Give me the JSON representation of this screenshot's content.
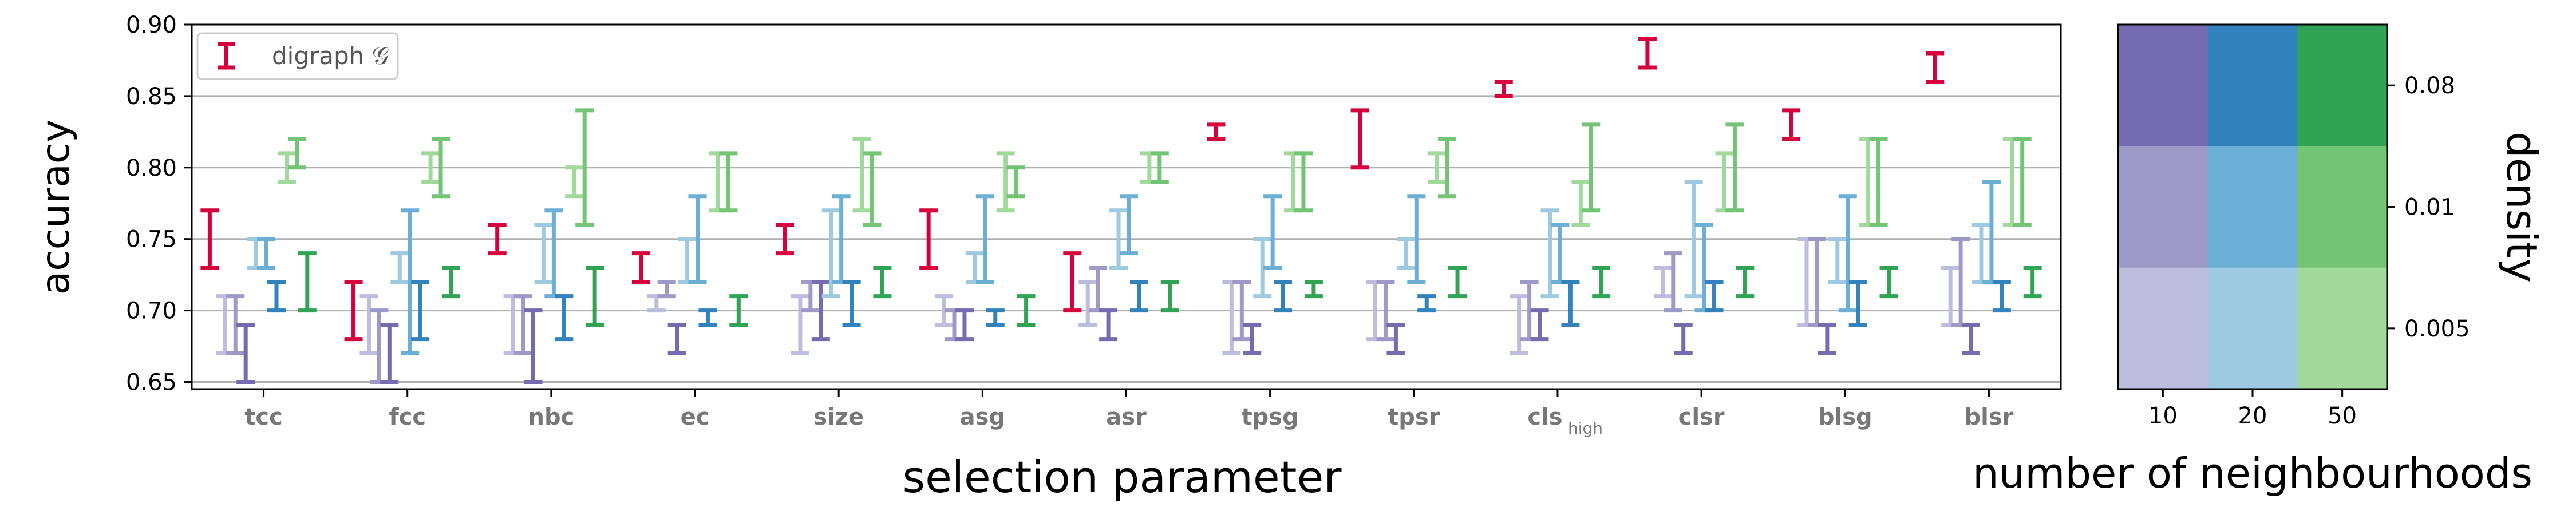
{
  "chart_data": [
    {
      "type": "errorbar",
      "xlabel": "selection parameter",
      "ylabel": "accuracy",
      "categories": [
        "tcc",
        "fcc",
        "nbc",
        "ec",
        "size",
        "asg",
        "asr",
        "tpsg",
        "tpsr",
        "cls",
        "clsr",
        "blsg",
        "blsr"
      ],
      "category_subscripts": {
        "cls": "high"
      },
      "ylim": [
        0.645,
        0.9
      ],
      "yticks": [
        "0.65",
        "0.70",
        "0.75",
        "0.80",
        "0.85",
        "0.90"
      ],
      "grid": "horizontal",
      "legend": {
        "location": "top-left",
        "entries": [
          {
            "label": "digraph 𝒢",
            "color": "#d6003c"
          }
        ]
      },
      "series": [
        {
          "name": "digraph 𝒢",
          "color": "#d6003c",
          "offset": -0.42,
          "intervals": [
            [
              0.73,
              0.77
            ],
            [
              0.68,
              0.72
            ],
            [
              0.74,
              0.76
            ],
            [
              0.72,
              0.74
            ],
            [
              0.74,
              0.76
            ],
            [
              0.73,
              0.77
            ],
            [
              0.7,
              0.74
            ],
            [
              0.82,
              0.83
            ],
            [
              0.8,
              0.84
            ],
            [
              0.85,
              0.86
            ],
            [
              0.87,
              0.89
            ],
            [
              0.82,
              0.84
            ],
            [
              0.86,
              0.88
            ]
          ]
        },
        {
          "color": "#bcbddc",
          "offset": -0.3,
          "intervals": [
            [
              0.67,
              0.71
            ],
            [
              0.67,
              0.71
            ],
            [
              0.67,
              0.71
            ],
            [
              0.7,
              0.71
            ],
            [
              0.67,
              0.71
            ],
            [
              0.69,
              0.71
            ],
            [
              0.69,
              0.72
            ],
            [
              0.67,
              0.72
            ],
            [
              0.68,
              0.72
            ],
            [
              0.67,
              0.71
            ],
            [
              0.71,
              0.73
            ],
            [
              0.69,
              0.75
            ],
            [
              0.69,
              0.73
            ]
          ]
        },
        {
          "color": "#9e9ac8",
          "offset": -0.22,
          "intervals": [
            [
              0.67,
              0.71
            ],
            [
              0.65,
              0.7
            ],
            [
              0.67,
              0.71
            ],
            [
              0.71,
              0.72
            ],
            [
              0.7,
              0.72
            ],
            [
              0.68,
              0.7
            ],
            [
              0.7,
              0.73
            ],
            [
              0.68,
              0.72
            ],
            [
              0.68,
              0.72
            ],
            [
              0.68,
              0.72
            ],
            [
              0.7,
              0.74
            ],
            [
              0.69,
              0.75
            ],
            [
              0.69,
              0.75
            ]
          ]
        },
        {
          "color": "#756bb1",
          "offset": -0.14,
          "intervals": [
            [
              0.65,
              0.69
            ],
            [
              0.65,
              0.69
            ],
            [
              0.65,
              0.7
            ],
            [
              0.67,
              0.69
            ],
            [
              0.68,
              0.72
            ],
            [
              0.68,
              0.7
            ],
            [
              0.68,
              0.7
            ],
            [
              0.67,
              0.69
            ],
            [
              0.67,
              0.69
            ],
            [
              0.68,
              0.7
            ],
            [
              0.67,
              0.69
            ],
            [
              0.67,
              0.69
            ],
            [
              0.67,
              0.69
            ]
          ]
        },
        {
          "color": "#9ecae1",
          "offset": -0.06,
          "intervals": [
            [
              0.73,
              0.75
            ],
            [
              0.72,
              0.74
            ],
            [
              0.72,
              0.76
            ],
            [
              0.72,
              0.75
            ],
            [
              0.71,
              0.77
            ],
            [
              0.72,
              0.74
            ],
            [
              0.73,
              0.77
            ],
            [
              0.71,
              0.75
            ],
            [
              0.73,
              0.75
            ],
            [
              0.71,
              0.77
            ],
            [
              0.71,
              0.79
            ],
            [
              0.72,
              0.75
            ],
            [
              0.72,
              0.76
            ]
          ]
        },
        {
          "color": "#6baed6",
          "offset": 0.02,
          "intervals": [
            [
              0.73,
              0.75
            ],
            [
              0.67,
              0.77
            ],
            [
              0.71,
              0.77
            ],
            [
              0.72,
              0.78
            ],
            [
              0.72,
              0.78
            ],
            [
              0.72,
              0.78
            ],
            [
              0.74,
              0.78
            ],
            [
              0.73,
              0.78
            ],
            [
              0.72,
              0.78
            ],
            [
              0.72,
              0.76
            ],
            [
              0.7,
              0.76
            ],
            [
              0.7,
              0.78
            ],
            [
              0.72,
              0.79
            ]
          ]
        },
        {
          "color": "#3182bd",
          "offset": 0.1,
          "intervals": [
            [
              0.7,
              0.72
            ],
            [
              0.68,
              0.72
            ],
            [
              0.68,
              0.71
            ],
            [
              0.69,
              0.7
            ],
            [
              0.69,
              0.72
            ],
            [
              0.69,
              0.7
            ],
            [
              0.7,
              0.72
            ],
            [
              0.7,
              0.72
            ],
            [
              0.7,
              0.71
            ],
            [
              0.69,
              0.72
            ],
            [
              0.7,
              0.72
            ],
            [
              0.69,
              0.72
            ],
            [
              0.7,
              0.72
            ]
          ]
        },
        {
          "color": "#a1d99b",
          "offset": 0.18,
          "intervals": [
            [
              0.79,
              0.81
            ],
            [
              0.79,
              0.81
            ],
            [
              0.78,
              0.8
            ],
            [
              0.77,
              0.81
            ],
            [
              0.77,
              0.82
            ],
            [
              0.77,
              0.81
            ],
            [
              0.79,
              0.81
            ],
            [
              0.77,
              0.81
            ],
            [
              0.79,
              0.81
            ],
            [
              0.76,
              0.79
            ],
            [
              0.77,
              0.81
            ],
            [
              0.76,
              0.82
            ],
            [
              0.76,
              0.82
            ]
          ]
        },
        {
          "color": "#74c476",
          "offset": 0.26,
          "intervals": [
            [
              0.8,
              0.82
            ],
            [
              0.78,
              0.82
            ],
            [
              0.76,
              0.84
            ],
            [
              0.77,
              0.81
            ],
            [
              0.76,
              0.81
            ],
            [
              0.78,
              0.8
            ],
            [
              0.79,
              0.81
            ],
            [
              0.77,
              0.81
            ],
            [
              0.78,
              0.82
            ],
            [
              0.77,
              0.83
            ],
            [
              0.77,
              0.83
            ],
            [
              0.76,
              0.82
            ],
            [
              0.76,
              0.82
            ]
          ]
        },
        {
          "color": "#31a354",
          "offset": 0.34,
          "intervals": [
            [
              0.7,
              0.74
            ],
            [
              0.71,
              0.73
            ],
            [
              0.69,
              0.73
            ],
            [
              0.69,
              0.71
            ],
            [
              0.71,
              0.73
            ],
            [
              0.69,
              0.71
            ],
            [
              0.7,
              0.72
            ],
            [
              0.71,
              0.72
            ],
            [
              0.71,
              0.73
            ],
            [
              0.71,
              0.73
            ],
            [
              0.71,
              0.73
            ],
            [
              0.71,
              0.73
            ],
            [
              0.71,
              0.73
            ]
          ]
        }
      ]
    },
    {
      "type": "heatmap",
      "xlabel": "number of neighbourhoods",
      "ylabel": "density",
      "x_categories": [
        "10",
        "20",
        "50"
      ],
      "y_categories": [
        "0.08",
        "0.01",
        "0.005"
      ],
      "colors": [
        [
          "#756bb1",
          "#3182bd",
          "#31a354"
        ],
        [
          "#9e9ac8",
          "#6baed6",
          "#74c476"
        ],
        [
          "#bcbddc",
          "#9ecae1",
          "#a1d99b"
        ]
      ]
    }
  ]
}
